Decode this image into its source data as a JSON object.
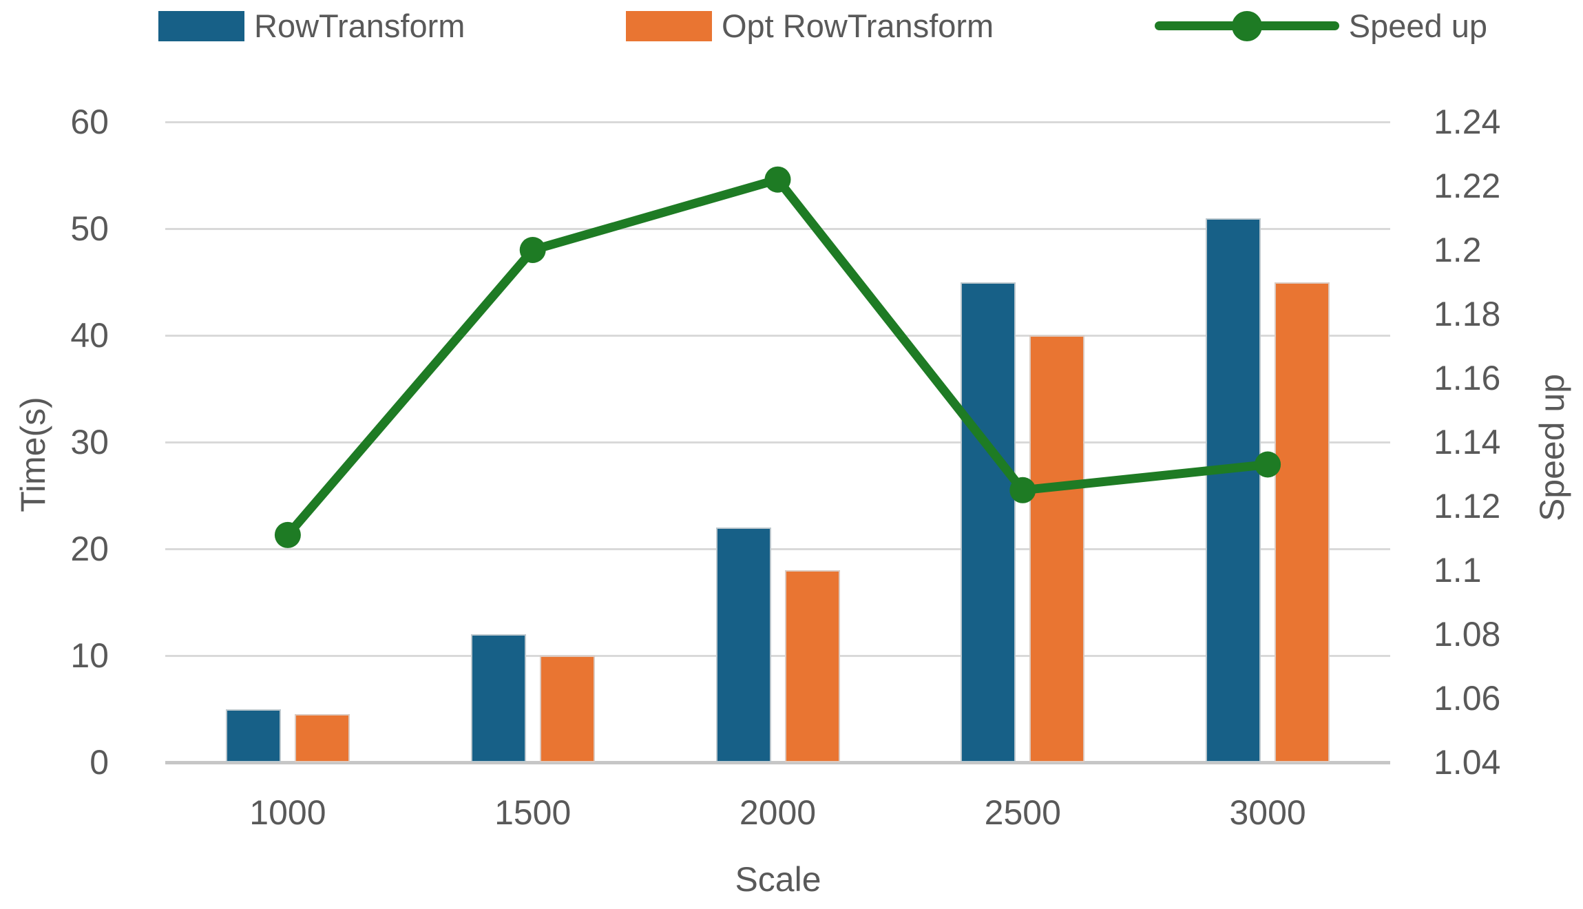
{
  "chart_data": {
    "type": "combo",
    "categories": [
      "1000",
      "1500",
      "2000",
      "2500",
      "3000"
    ],
    "series": [
      {
        "name": "RowTransform",
        "type": "bar",
        "axis": "left",
        "color": "#176087",
        "values": [
          5,
          12,
          22,
          45,
          51
        ]
      },
      {
        "name": "Opt RowTransform",
        "type": "bar",
        "axis": "left",
        "color": "#E97532",
        "values": [
          4.5,
          10,
          18,
          40,
          45
        ]
      },
      {
        "name": "Speed up",
        "type": "line",
        "axis": "right",
        "color": "#1E7B24",
        "values": [
          1.111,
          1.2,
          1.222,
          1.125,
          1.133
        ]
      }
    ],
    "x_axis": {
      "label": "Scale",
      "tick_labels": [
        "1000",
        "1500",
        "2000",
        "2500",
        "3000"
      ]
    },
    "y_axis_left": {
      "label": "Time(s)",
      "min": 0,
      "max": 60,
      "step": 10,
      "tick_labels": [
        "0",
        "10",
        "20",
        "30",
        "40",
        "50",
        "60"
      ]
    },
    "y_axis_right": {
      "label": "Speed up",
      "min": 1.04,
      "max": 1.24,
      "step": 0.02,
      "tick_labels": [
        "1.04",
        "1.06",
        "1.08",
        "1.1",
        "1.12",
        "1.14",
        "1.16",
        "1.18",
        "1.2",
        "1.22",
        "1.24"
      ]
    },
    "legend": {
      "position": "top",
      "entries": [
        "RowTransform",
        "Opt RowTransform",
        "Speed up"
      ]
    },
    "grid": "horizontal",
    "colors": {
      "text": "#595959",
      "gridline": "#D9D9D9",
      "axis_line": "#C6C6C6",
      "bar1": "#176087",
      "bar2": "#E97532",
      "line": "#1E7B24"
    }
  }
}
